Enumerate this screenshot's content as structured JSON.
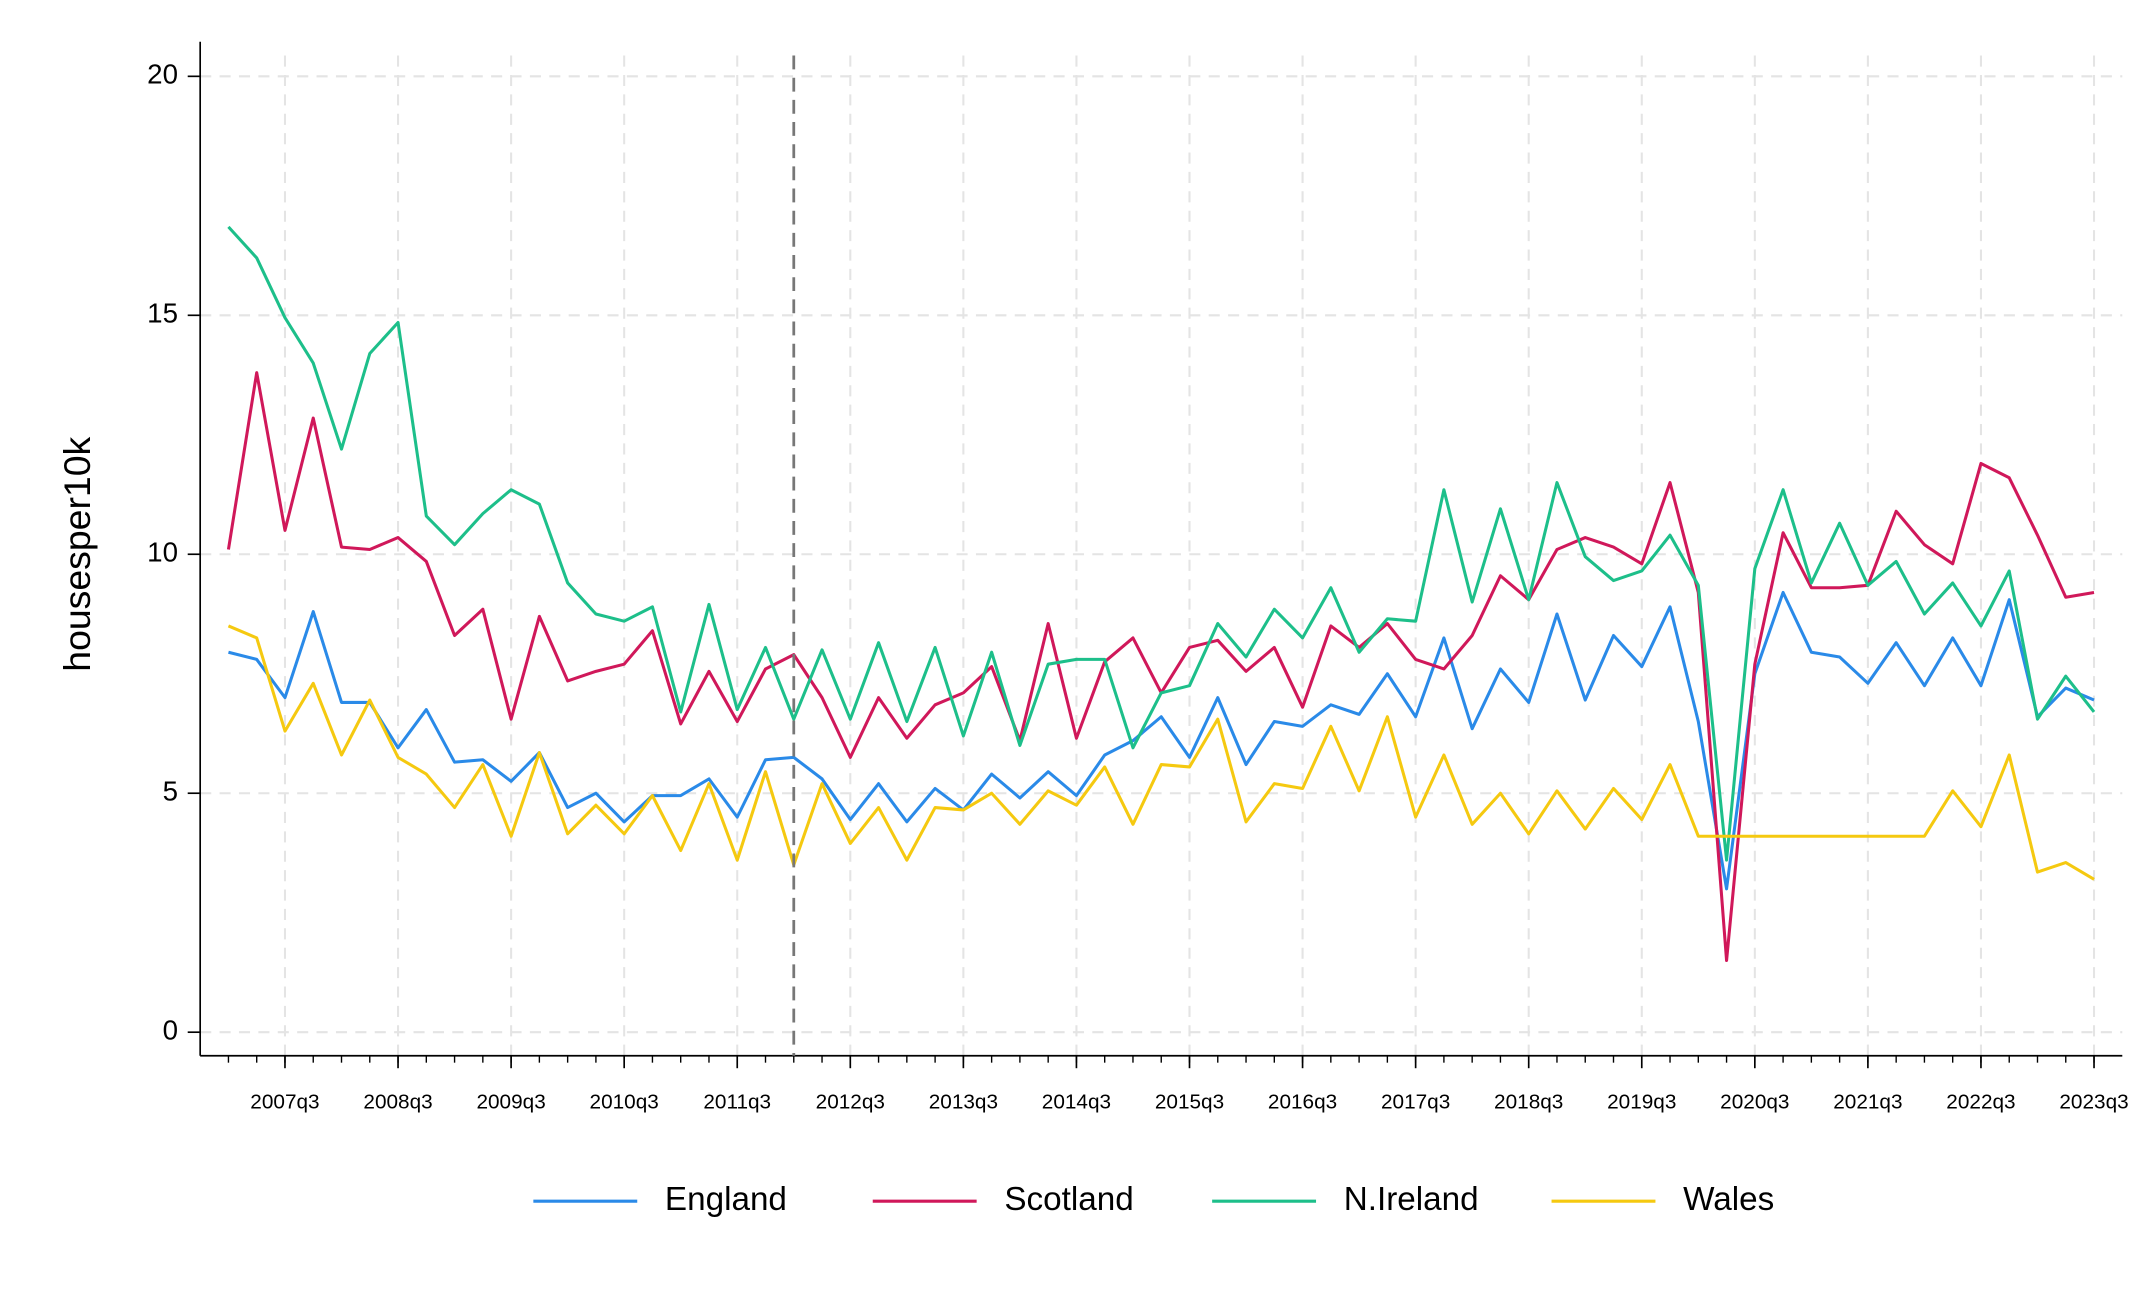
{
  "chart_data": {
    "type": "line",
    "ylabel": "housesper10k",
    "x": [
      2007,
      2007.25,
      2007.5,
      2007.75,
      2008,
      2008.25,
      2008.5,
      2008.75,
      2009,
      2009.25,
      2009.5,
      2009.75,
      2010,
      2010.25,
      2010.5,
      2010.75,
      2011,
      2011.25,
      2011.5,
      2011.75,
      2012,
      2012.25,
      2012.5,
      2012.75,
      2013,
      2013.25,
      2013.5,
      2013.75,
      2014,
      2014.25,
      2014.5,
      2014.75,
      2015,
      2015.25,
      2015.5,
      2015.75,
      2016,
      2016.25,
      2016.5,
      2016.75,
      2017,
      2017.25,
      2017.5,
      2017.75,
      2018,
      2018.25,
      2018.5,
      2018.75,
      2019,
      2019.25,
      2019.5,
      2019.75,
      2020,
      2020.25,
      2020.5,
      2020.75,
      2021,
      2021.25,
      2021.5,
      2021.75,
      2022,
      2022.25,
      2022.5,
      2022.75,
      2023,
      2023.25,
      2023.5
    ],
    "series": [
      {
        "name": "England",
        "color": "#2a8ae8",
        "values": [
          7.95,
          7.8,
          7.0,
          8.8,
          6.9,
          6.9,
          5.95,
          6.75,
          5.65,
          5.7,
          5.25,
          5.85,
          4.7,
          5.0,
          4.4,
          4.95,
          4.95,
          5.3,
          4.5,
          5.7,
          5.75,
          5.3,
          4.45,
          5.2,
          4.4,
          5.1,
          4.65,
          5.4,
          4.9,
          5.45,
          4.95,
          5.8,
          6.1,
          6.6,
          5.75,
          7.0,
          5.6,
          6.5,
          6.4,
          6.85,
          6.65,
          7.5,
          6.6,
          8.25,
          6.35,
          7.6,
          6.9,
          8.75,
          6.95,
          8.3,
          7.65,
          8.9,
          6.5,
          3.0,
          7.5,
          9.2,
          7.95,
          7.85,
          7.3,
          8.15,
          7.25,
          8.25,
          7.25,
          9.05,
          6.6,
          7.2,
          6.95
        ]
      },
      {
        "name": "Scotland",
        "color": "#d0185a",
        "values": [
          10.1,
          13.8,
          10.5,
          12.85,
          10.15,
          10.1,
          10.35,
          9.85,
          8.3,
          8.85,
          6.55,
          8.7,
          7.35,
          7.55,
          7.7,
          8.4,
          6.45,
          7.55,
          6.5,
          7.6,
          7.9,
          7.0,
          5.75,
          7.0,
          6.15,
          6.85,
          7.1,
          7.65,
          6.1,
          8.55,
          6.15,
          7.75,
          8.25,
          7.1,
          8.05,
          8.2,
          7.55,
          8.05,
          6.8,
          8.5,
          8.05,
          8.55,
          7.8,
          7.6,
          8.3,
          9.55,
          9.05,
          10.1,
          10.35,
          10.15,
          9.8,
          11.5,
          9.2,
          1.5,
          7.7,
          10.45,
          9.3,
          9.3,
          9.35,
          10.9,
          10.2,
          9.8,
          11.9,
          11.6,
          10.4,
          9.1,
          9.2
        ]
      },
      {
        "name": "N.Ireland",
        "color": "#1dbf8a",
        "values": [
          16.85,
          16.2,
          14.95,
          14.0,
          12.2,
          14.2,
          14.85,
          10.8,
          10.2,
          10.85,
          11.35,
          11.05,
          9.4,
          8.75,
          8.6,
          8.9,
          6.7,
          8.95,
          6.75,
          8.05,
          6.55,
          8.0,
          6.55,
          8.15,
          6.5,
          8.05,
          6.2,
          7.95,
          6.0,
          7.7,
          7.8,
          7.8,
          5.95,
          7.1,
          7.25,
          8.55,
          7.85,
          8.85,
          8.25,
          9.3,
          7.95,
          8.65,
          8.6,
          11.35,
          9.0,
          10.95,
          9.05,
          11.5,
          9.95,
          9.45,
          9.65,
          10.4,
          9.35,
          3.6,
          9.7,
          11.35,
          9.4,
          10.65,
          9.35,
          9.85,
          8.75,
          9.4,
          8.5,
          9.65,
          6.55,
          7.45,
          6.7
        ]
      },
      {
        "name": "Wales",
        "color": "#f5c910",
        "values": [
          8.5,
          8.25,
          6.3,
          7.3,
          5.8,
          6.95,
          5.75,
          5.4,
          4.7,
          5.6,
          4.1,
          5.85,
          4.15,
          4.75,
          4.15,
          4.95,
          3.8,
          5.2,
          3.6,
          5.45,
          3.5,
          5.2,
          3.95,
          4.7,
          3.6,
          4.7,
          4.65,
          5.0,
          4.35,
          5.05,
          4.75,
          5.55,
          4.35,
          5.6,
          5.55,
          6.55,
          4.4,
          5.2,
          5.1,
          6.4,
          5.05,
          6.6,
          4.5,
          5.8,
          4.35,
          5.0,
          4.15,
          5.05,
          4.25,
          5.1,
          4.45,
          5.6,
          4.1,
          4.1,
          4.1,
          4.1,
          4.1,
          4.1,
          4.1,
          4.1,
          4.1,
          5.05,
          4.3,
          5.8,
          3.35,
          3.55,
          3.2
        ]
      }
    ],
    "xlim": [
      2006.75,
      2023.75
    ],
    "xticks": [
      {
        "value": 2007.5,
        "label": "2007q3"
      },
      {
        "value": 2008.5,
        "label": "2008q3"
      },
      {
        "value": 2009.5,
        "label": "2009q3"
      },
      {
        "value": 2010.5,
        "label": "2010q3"
      },
      {
        "value": 2011.5,
        "label": "2011q3"
      },
      {
        "value": 2012.5,
        "label": "2012q3"
      },
      {
        "value": 2013.5,
        "label": "2013q3"
      },
      {
        "value": 2014.5,
        "label": "2014q3"
      },
      {
        "value": 2015.5,
        "label": "2015q3"
      },
      {
        "value": 2016.5,
        "label": "2016q3"
      },
      {
        "value": 2017.5,
        "label": "2017q3"
      },
      {
        "value": 2018.5,
        "label": "2018q3"
      },
      {
        "value": 2019.5,
        "label": "2019q3"
      },
      {
        "value": 2020.5,
        "label": "2020q3"
      },
      {
        "value": 2021.5,
        "label": "2021q3"
      },
      {
        "value": 2022.5,
        "label": "2022q3"
      },
      {
        "value": 2023.5,
        "label": "2023q3"
      }
    ],
    "ylim": [
      0,
      20
    ],
    "yticks": [
      0,
      5,
      10,
      15,
      20
    ],
    "grid": true,
    "vline": 2012,
    "legend": "bottom"
  }
}
